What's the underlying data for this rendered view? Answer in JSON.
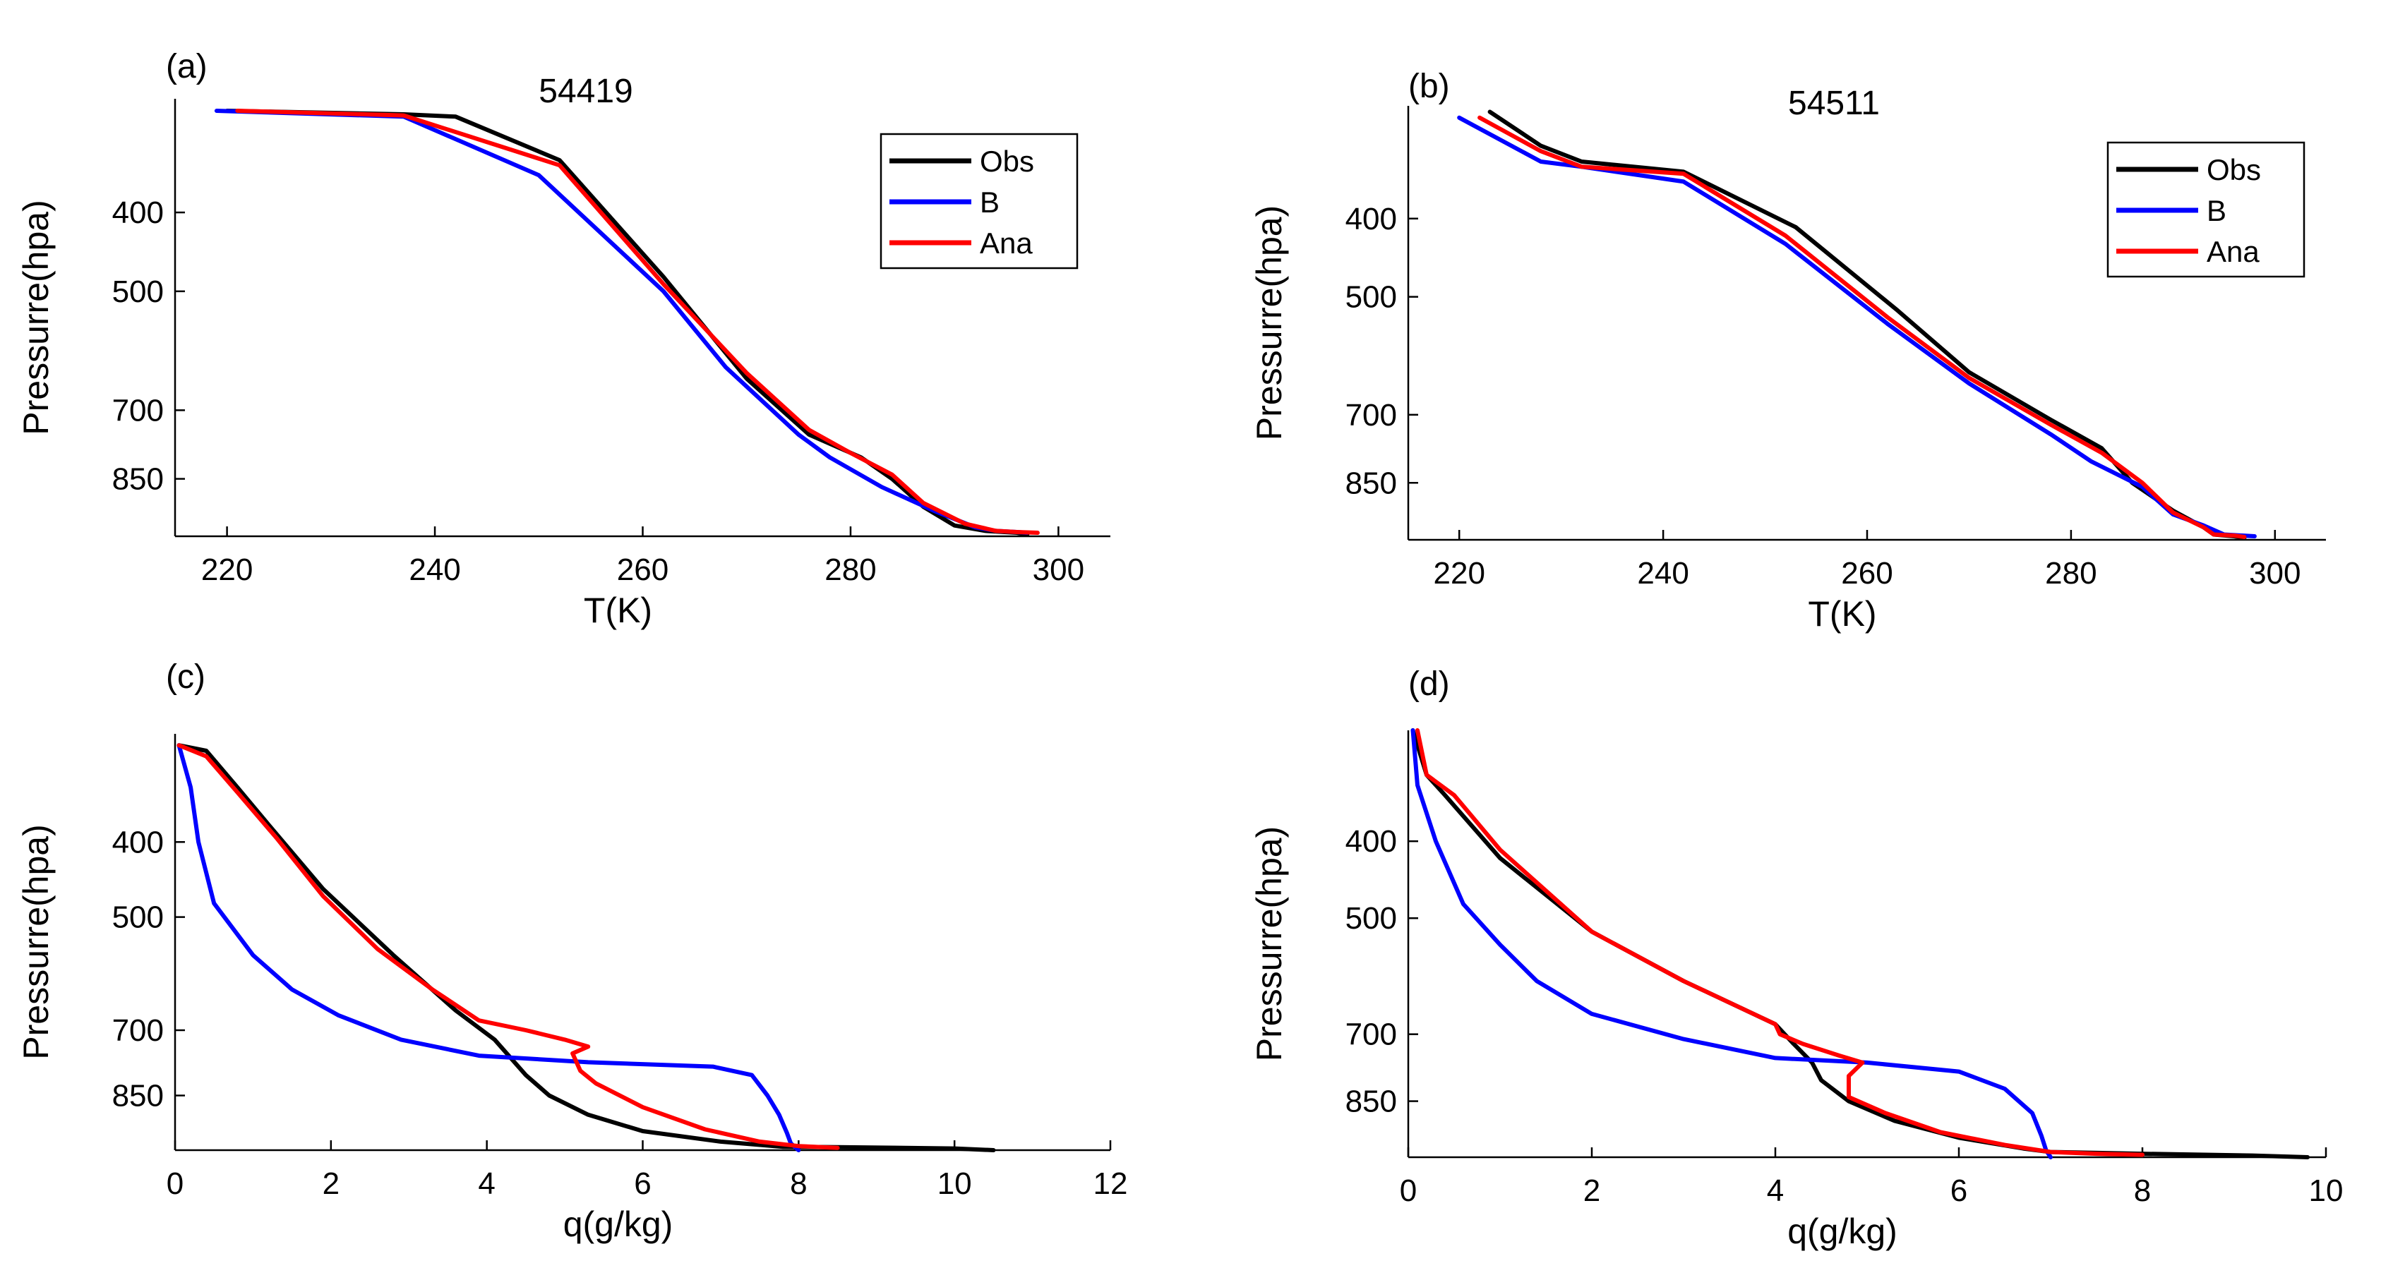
{
  "chart_data": [
    {
      "panel": "(a)",
      "type": "line",
      "title": "54419",
      "xlabel": "T(K)",
      "ylabel": "Pressurre(hpa)",
      "xlim": [
        215,
        305
      ],
      "xticks": [
        220,
        240,
        260,
        280,
        300
      ],
      "ylim": [
        1000,
        290
      ],
      "yticks": [
        400,
        500,
        700,
        850
      ],
      "legend": {
        "position": "top-right",
        "entries": [
          "Obs",
          "B",
          "Ana"
        ]
      },
      "series": [
        {
          "name": "Obs",
          "color": "#000000",
          "points": [
            [
              220,
              300
            ],
            [
              237,
              303
            ],
            [
              242,
              305
            ],
            [
              252,
              345
            ],
            [
              262,
              480
            ],
            [
              270,
              640
            ],
            [
              276,
              750
            ],
            [
              281,
              800
            ],
            [
              284,
              850
            ],
            [
              287,
              920
            ],
            [
              290,
              970
            ],
            [
              293,
              985
            ],
            [
              296,
              990
            ],
            [
              297,
              995
            ]
          ]
        },
        {
          "name": "B",
          "color": "#0000ff",
          "points": [
            [
              219,
              300
            ],
            [
              237,
              305
            ],
            [
              250,
              360
            ],
            [
              262,
              500
            ],
            [
              268,
              620
            ],
            [
              275,
              750
            ],
            [
              278,
              800
            ],
            [
              283,
              870
            ],
            [
              288,
              930
            ],
            [
              292,
              975
            ],
            [
              294,
              985
            ],
            [
              296,
              988
            ],
            [
              297,
              990
            ]
          ]
        },
        {
          "name": "Ana",
          "color": "#ff0000",
          "points": [
            [
              221,
              300
            ],
            [
              237,
              304
            ],
            [
              252,
              350
            ],
            [
              262,
              490
            ],
            [
              270,
              630
            ],
            [
              276,
              740
            ],
            [
              280,
              790
            ],
            [
              284,
              840
            ],
            [
              287,
              910
            ],
            [
              291,
              965
            ],
            [
              294,
              985
            ],
            [
              296,
              988
            ],
            [
              298,
              990
            ]
          ]
        }
      ]
    },
    {
      "panel": "(b)",
      "type": "line",
      "title": "54511",
      "xlabel": "T(K)",
      "ylabel": "Pressurre(hpa)",
      "xlim": [
        215,
        305
      ],
      "xticks": [
        220,
        240,
        260,
        280,
        300
      ],
      "ylim": [
        1000,
        290
      ],
      "yticks": [
        400,
        500,
        700,
        850
      ],
      "legend": {
        "position": "top-right",
        "entries": [
          "Obs",
          "B",
          "Ana"
        ]
      },
      "series": [
        {
          "name": "Obs",
          "color": "#000000",
          "points": [
            [
              223,
              295
            ],
            [
              228,
              325
            ],
            [
              232,
              340
            ],
            [
              242,
              350
            ],
            [
              253,
              410
            ],
            [
              263,
              520
            ],
            [
              270,
              620
            ],
            [
              278,
              710
            ],
            [
              283,
              770
            ],
            [
              286,
              850
            ],
            [
              290,
              920
            ],
            [
              293,
              965
            ],
            [
              294,
              985
            ],
            [
              296,
              990
            ],
            [
              297,
              995
            ]
          ]
        },
        {
          "name": "B",
          "color": "#0000ff",
          "points": [
            [
              220,
              300
            ],
            [
              228,
              340
            ],
            [
              232,
              345
            ],
            [
              242,
              360
            ],
            [
              252,
              430
            ],
            [
              262,
              540
            ],
            [
              270,
              640
            ],
            [
              278,
              740
            ],
            [
              282,
              800
            ],
            [
              287,
              860
            ],
            [
              290,
              930
            ],
            [
              293,
              960
            ],
            [
              295,
              985
            ],
            [
              298,
              990
            ]
          ]
        },
        {
          "name": "Ana",
          "color": "#ff0000",
          "points": [
            [
              222,
              300
            ],
            [
              228,
              330
            ],
            [
              232,
              345
            ],
            [
              242,
              352
            ],
            [
              252,
              420
            ],
            [
              262,
              530
            ],
            [
              270,
              630
            ],
            [
              278,
              720
            ],
            [
              283,
              780
            ],
            [
              287,
              850
            ],
            [
              290,
              925
            ],
            [
              293,
              965
            ],
            [
              294,
              985
            ],
            [
              296,
              988
            ],
            [
              297,
              992
            ]
          ]
        }
      ]
    },
    {
      "panel": "(c)",
      "type": "line",
      "title": "",
      "xlabel": "q(g/kg)",
      "ylabel": "Pressurre(hpa)",
      "xlim": [
        0,
        12
      ],
      "xticks": [
        0,
        2,
        4,
        6,
        8,
        10,
        12
      ],
      "ylim": [
        1000,
        290
      ],
      "yticks": [
        400,
        500,
        700,
        850
      ],
      "series": [
        {
          "name": "Obs",
          "color": "#000000",
          "points": [
            [
              0.05,
              300
            ],
            [
              0.4,
              305
            ],
            [
              0.8,
              340
            ],
            [
              1.2,
              380
            ],
            [
              1.9,
              460
            ],
            [
              2.8,
              560
            ],
            [
              3.6,
              660
            ],
            [
              4.1,
              720
            ],
            [
              4.5,
              800
            ],
            [
              4.8,
              850
            ],
            [
              5.3,
              900
            ],
            [
              6.0,
              945
            ],
            [
              7.0,
              975
            ],
            [
              7.8,
              990
            ],
            [
              8.5,
              991
            ],
            [
              10.0,
              995
            ],
            [
              10.5,
              1000
            ]
          ]
        },
        {
          "name": "B",
          "color": "#0000ff",
          "points": [
            [
              0.05,
              300
            ],
            [
              0.2,
              340
            ],
            [
              0.3,
              400
            ],
            [
              0.5,
              480
            ],
            [
              1.0,
              560
            ],
            [
              1.5,
              620
            ],
            [
              2.1,
              670
            ],
            [
              2.9,
              720
            ],
            [
              3.9,
              755
            ],
            [
              5.3,
              770
            ],
            [
              6.9,
              780
            ],
            [
              7.4,
              800
            ],
            [
              7.6,
              850
            ],
            [
              7.75,
              900
            ],
            [
              7.85,
              950
            ],
            [
              7.9,
              980
            ],
            [
              8.0,
              1000
            ]
          ]
        },
        {
          "name": "Ana",
          "color": "#ff0000",
          "points": [
            [
              0.05,
              300
            ],
            [
              0.4,
              310
            ],
            [
              0.8,
              345
            ],
            [
              1.3,
              395
            ],
            [
              1.9,
              470
            ],
            [
              2.6,
              550
            ],
            [
              3.3,
              620
            ],
            [
              3.9,
              680
            ],
            [
              4.5,
              700
            ],
            [
              5.0,
              720
            ],
            [
              5.3,
              735
            ],
            [
              5.1,
              750
            ],
            [
              5.2,
              790
            ],
            [
              5.4,
              820
            ],
            [
              6.0,
              880
            ],
            [
              6.8,
              940
            ],
            [
              7.5,
              975
            ],
            [
              8.0,
              988
            ],
            [
              8.5,
              993
            ]
          ]
        }
      ]
    },
    {
      "panel": "(d)",
      "type": "line",
      "title": "",
      "xlabel": "q(g/kg)",
      "ylabel": "Pressurre(hpa)",
      "xlim": [
        0,
        10
      ],
      "xticks": [
        0,
        2,
        4,
        6,
        8,
        10
      ],
      "ylim": [
        1000,
        290
      ],
      "yticks": [
        400,
        500,
        700,
        850
      ],
      "series": [
        {
          "name": "Obs",
          "color": "#000000",
          "points": [
            [
              0.05,
              290
            ],
            [
              0.2,
              330
            ],
            [
              0.4,
              350
            ],
            [
              1.0,
              420
            ],
            [
              2.0,
              520
            ],
            [
              3.0,
              600
            ],
            [
              4.0,
              680
            ],
            [
              4.2,
              720
            ],
            [
              4.4,
              760
            ],
            [
              4.5,
              800
            ],
            [
              4.8,
              850
            ],
            [
              5.3,
              900
            ],
            [
              6.0,
              945
            ],
            [
              6.7,
              975
            ],
            [
              7.0,
              985
            ],
            [
              8.0,
              990
            ],
            [
              9.2,
              995
            ],
            [
              9.8,
              1000
            ]
          ]
        },
        {
          "name": "B",
          "color": "#0000ff",
          "points": [
            [
              0.05,
              290
            ],
            [
              0.1,
              340
            ],
            [
              0.3,
              400
            ],
            [
              0.6,
              480
            ],
            [
              1.0,
              540
            ],
            [
              1.4,
              600
            ],
            [
              2.0,
              660
            ],
            [
              3.0,
              710
            ],
            [
              4.0,
              750
            ],
            [
              5.0,
              760
            ],
            [
              6.0,
              780
            ],
            [
              6.5,
              820
            ],
            [
              6.8,
              880
            ],
            [
              6.9,
              940
            ],
            [
              6.95,
              980
            ],
            [
              7.0,
              1000
            ]
          ]
        },
        {
          "name": "Ana",
          "color": "#ff0000",
          "points": [
            [
              0.1,
              290
            ],
            [
              0.2,
              330
            ],
            [
              0.5,
              350
            ],
            [
              1.0,
              410
            ],
            [
              2.0,
              520
            ],
            [
              3.0,
              600
            ],
            [
              4.0,
              680
            ],
            [
              4.05,
              700
            ],
            [
              4.3,
              720
            ],
            [
              4.7,
              745
            ],
            [
              4.95,
              760
            ],
            [
              4.8,
              790
            ],
            [
              4.8,
              840
            ],
            [
              5.2,
              880
            ],
            [
              5.8,
              930
            ],
            [
              6.5,
              965
            ],
            [
              7.0,
              985
            ],
            [
              7.5,
              990
            ],
            [
              8.0,
              993
            ]
          ]
        }
      ]
    }
  ]
}
